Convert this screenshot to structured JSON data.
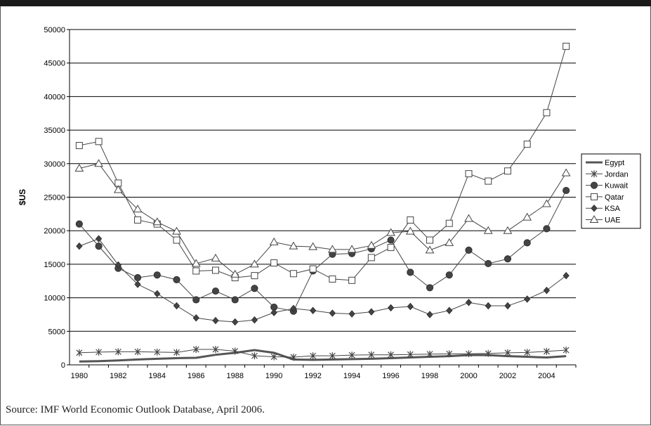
{
  "chart_data": {
    "type": "line",
    "title": "",
    "xlabel": "",
    "ylabel": "$US",
    "ylim": [
      0,
      50000
    ],
    "y_ticks": [
      0,
      5000,
      10000,
      15000,
      20000,
      25000,
      30000,
      35000,
      40000,
      45000,
      50000
    ],
    "x_ticks": [
      1980,
      1982,
      1984,
      1986,
      1988,
      1990,
      1992,
      1994,
      1996,
      1998,
      2000,
      2002,
      2004
    ],
    "x": [
      1980,
      1981,
      1982,
      1983,
      1984,
      1985,
      1986,
      1987,
      1988,
      1989,
      1990,
      1991,
      1992,
      1993,
      1994,
      1995,
      1996,
      1997,
      1998,
      1999,
      2000,
      2001,
      2002,
      2003,
      2004,
      2005
    ],
    "grid": "horizontal",
    "legend_position": "right",
    "series": [
      {
        "name": "Egypt",
        "marker": "none",
        "values": [
          500,
          550,
          650,
          800,
          900,
          1000,
          1050,
          1500,
          1800,
          2200,
          1800,
          800,
          750,
          800,
          850,
          900,
          1000,
          1100,
          1200,
          1300,
          1450,
          1450,
          1300,
          1200,
          1100,
          1300
        ]
      },
      {
        "name": "Jordan",
        "marker": "star",
        "values": [
          1800,
          1900,
          1950,
          1950,
          1900,
          1850,
          2300,
          2300,
          2050,
          1350,
          1200,
          1150,
          1350,
          1350,
          1450,
          1500,
          1500,
          1550,
          1600,
          1650,
          1650,
          1700,
          1800,
          1850,
          2000,
          2200
        ]
      },
      {
        "name": "Kuwait",
        "marker": "circle",
        "values": [
          21000,
          17700,
          14400,
          13000,
          13400,
          12700,
          9700,
          11000,
          9700,
          11400,
          8600,
          8000,
          14000,
          16500,
          16600,
          17300,
          18600,
          13800,
          11500,
          13400,
          17100,
          15100,
          15800,
          18200,
          20300,
          26000
        ]
      },
      {
        "name": "Qatar",
        "marker": "square",
        "values": [
          32700,
          33300,
          27100,
          21600,
          21000,
          18600,
          14000,
          14100,
          13000,
          13300,
          15200,
          13600,
          14300,
          12800,
          12600,
          16000,
          17500,
          21600,
          18600,
          21100,
          28500,
          27400,
          28900,
          32900,
          37600,
          47500
        ]
      },
      {
        "name": "KSA",
        "marker": "diamond",
        "values": [
          17700,
          18800,
          14900,
          12000,
          10600,
          8800,
          7000,
          6600,
          6400,
          6700,
          7800,
          8400,
          8100,
          7700,
          7600,
          7900,
          8500,
          8700,
          7500,
          8100,
          9300,
          8800,
          8800,
          9800,
          11100,
          13300
        ]
      },
      {
        "name": "UAE",
        "marker": "triangle",
        "values": [
          29300,
          30000,
          26100,
          23200,
          21300,
          19900,
          15100,
          15900,
          13500,
          15000,
          18300,
          17700,
          17600,
          17200,
          17200,
          17800,
          19700,
          19900,
          17100,
          18200,
          21800,
          20000,
          20000,
          22000,
          24000,
          28600
        ]
      }
    ]
  },
  "source_text": "Source: IMF World Economic Outlook Database, April 2006."
}
